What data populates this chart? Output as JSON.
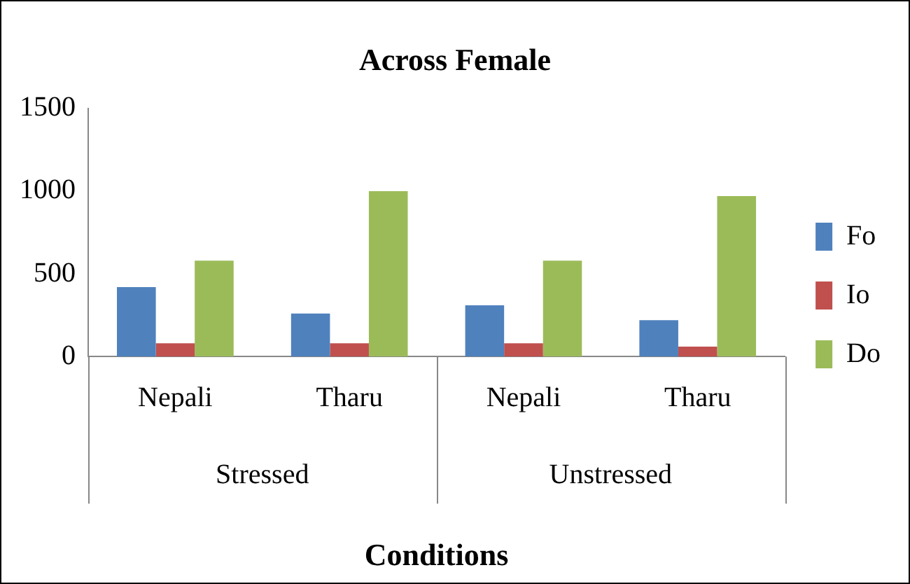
{
  "chart_data": {
    "type": "bar",
    "title": "Across Female",
    "xlabel": "Conditions",
    "categories": [
      "Nepali",
      "Tharu",
      "Nepali",
      "Tharu"
    ],
    "annotations": [
      "Stressed",
      "Unstressed"
    ],
    "series": [
      {
        "name": "Fo",
        "color": "#4f81bd",
        "values": [
          420,
          260,
          310,
          220
        ]
      },
      {
        "name": "Io",
        "color": "#c0504d",
        "values": [
          80,
          80,
          80,
          60
        ]
      },
      {
        "name": "Do",
        "color": "#9bbb59",
        "values": [
          580,
          1000,
          580,
          970
        ]
      }
    ],
    "ylim": [
      0,
      1500
    ],
    "yticks": [
      0,
      500,
      1000,
      1500
    ],
    "grid": false,
    "legend": "right"
  }
}
